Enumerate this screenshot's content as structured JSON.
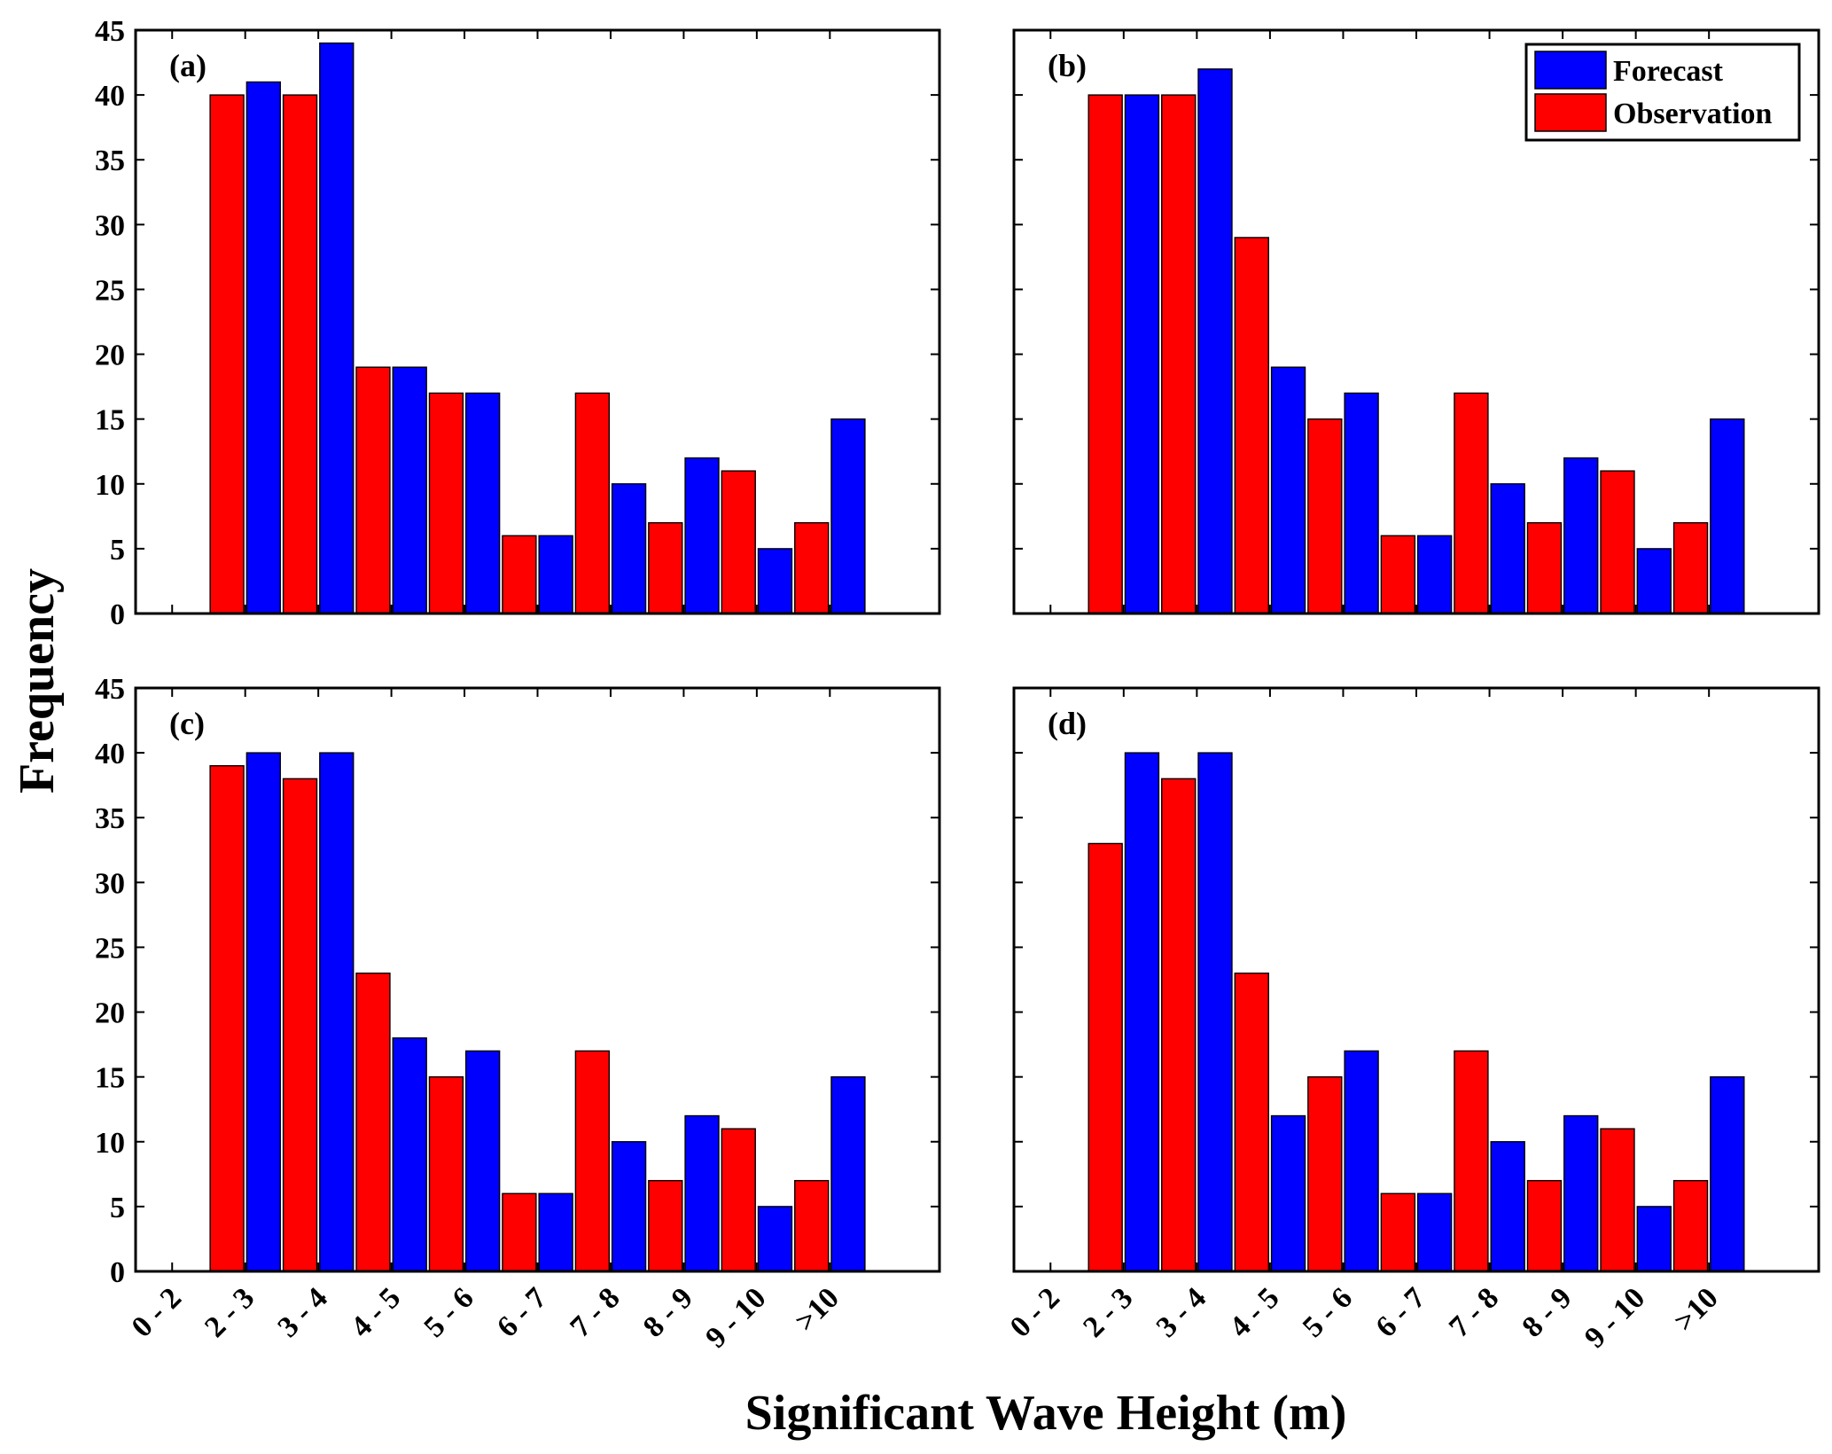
{
  "chart_data": {
    "type": "bar",
    "xlabel": "Significant Wave Height (m)",
    "ylabel": "Frequency",
    "ylim": [
      0,
      45
    ],
    "yticks": [
      "0",
      "5",
      "10",
      "15",
      "20",
      "25",
      "30",
      "35",
      "40",
      "45"
    ],
    "xtick_labels": [
      "0 - 2",
      "2 - 3",
      "3 - 4",
      "4 - 5",
      "5 - 6",
      "6 - 7",
      "7 - 8",
      "8 - 9",
      "9 - 10",
      ">10"
    ],
    "legend": {
      "placement": "top-right of panel (b)",
      "entries": [
        {
          "name": "Forecast",
          "color": "#0000ff"
        },
        {
          "name": "Observation",
          "color": "#ff0000"
        }
      ]
    },
    "series_order": "18 bars per panel alternating Observation, Forecast starting at 0 - 2 slot offset",
    "panels": [
      {
        "label": "(a)",
        "bars": [
          {
            "series": "Observation",
            "value": 40
          },
          {
            "series": "Forecast",
            "value": 41
          },
          {
            "series": "Observation",
            "value": 40
          },
          {
            "series": "Forecast",
            "value": 44
          },
          {
            "series": "Observation",
            "value": 19
          },
          {
            "series": "Forecast",
            "value": 19
          },
          {
            "series": "Observation",
            "value": 17
          },
          {
            "series": "Forecast",
            "value": 17
          },
          {
            "series": "Observation",
            "value": 6
          },
          {
            "series": "Forecast",
            "value": 6
          },
          {
            "series": "Observation",
            "value": 17
          },
          {
            "series": "Forecast",
            "value": 10
          },
          {
            "series": "Observation",
            "value": 7
          },
          {
            "series": "Forecast",
            "value": 12
          },
          {
            "series": "Observation",
            "value": 11
          },
          {
            "series": "Forecast",
            "value": 5
          },
          {
            "series": "Observation",
            "value": 7
          },
          {
            "series": "Forecast",
            "value": 15
          }
        ]
      },
      {
        "label": "(b)",
        "bars": [
          {
            "series": "Observation",
            "value": 40
          },
          {
            "series": "Forecast",
            "value": 40
          },
          {
            "series": "Observation",
            "value": 40
          },
          {
            "series": "Forecast",
            "value": 42
          },
          {
            "series": "Observation",
            "value": 29
          },
          {
            "series": "Forecast",
            "value": 19
          },
          {
            "series": "Observation",
            "value": 15
          },
          {
            "series": "Forecast",
            "value": 17
          },
          {
            "series": "Observation",
            "value": 6
          },
          {
            "series": "Forecast",
            "value": 6
          },
          {
            "series": "Observation",
            "value": 17
          },
          {
            "series": "Forecast",
            "value": 10
          },
          {
            "series": "Observation",
            "value": 7
          },
          {
            "series": "Forecast",
            "value": 12
          },
          {
            "series": "Observation",
            "value": 11
          },
          {
            "series": "Forecast",
            "value": 5
          },
          {
            "series": "Observation",
            "value": 7
          },
          {
            "series": "Forecast",
            "value": 15
          }
        ]
      },
      {
        "label": "(c)",
        "bars": [
          {
            "series": "Observation",
            "value": 39
          },
          {
            "series": "Forecast",
            "value": 40
          },
          {
            "series": "Observation",
            "value": 38
          },
          {
            "series": "Forecast",
            "value": 40
          },
          {
            "series": "Observation",
            "value": 23
          },
          {
            "series": "Forecast",
            "value": 18
          },
          {
            "series": "Observation",
            "value": 15
          },
          {
            "series": "Forecast",
            "value": 17
          },
          {
            "series": "Observation",
            "value": 6
          },
          {
            "series": "Forecast",
            "value": 6
          },
          {
            "series": "Observation",
            "value": 17
          },
          {
            "series": "Forecast",
            "value": 10
          },
          {
            "series": "Observation",
            "value": 7
          },
          {
            "series": "Forecast",
            "value": 12
          },
          {
            "series": "Observation",
            "value": 11
          },
          {
            "series": "Forecast",
            "value": 5
          },
          {
            "series": "Observation",
            "value": 7
          },
          {
            "series": "Forecast",
            "value": 15
          }
        ]
      },
      {
        "label": "(d)",
        "bars": [
          {
            "series": "Observation",
            "value": 33
          },
          {
            "series": "Forecast",
            "value": 40
          },
          {
            "series": "Observation",
            "value": 38
          },
          {
            "series": "Forecast",
            "value": 40
          },
          {
            "series": "Observation",
            "value": 23
          },
          {
            "series": "Forecast",
            "value": 12
          },
          {
            "series": "Observation",
            "value": 15
          },
          {
            "series": "Forecast",
            "value": 17
          },
          {
            "series": "Observation",
            "value": 6
          },
          {
            "series": "Forecast",
            "value": 6
          },
          {
            "series": "Observation",
            "value": 17
          },
          {
            "series": "Forecast",
            "value": 10
          },
          {
            "series": "Observation",
            "value": 7
          },
          {
            "series": "Forecast",
            "value": 12
          },
          {
            "series": "Observation",
            "value": 11
          },
          {
            "series": "Forecast",
            "value": 5
          },
          {
            "series": "Observation",
            "value": 7
          },
          {
            "series": "Forecast",
            "value": 15
          }
        ]
      }
    ]
  }
}
